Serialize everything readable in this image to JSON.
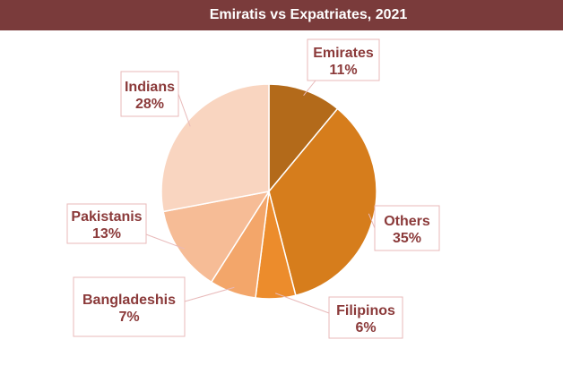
{
  "chart_data": {
    "type": "pie",
    "title": "Emiratis vs Expatriates, 2021",
    "slices": [
      {
        "name": "Emirates",
        "value": 11,
        "label": "11%",
        "color": "#b36a1a"
      },
      {
        "name": "Others",
        "value": 35,
        "label": "35%",
        "color": "#d67d1c"
      },
      {
        "name": "Filipinos",
        "value": 6,
        "label": "6%",
        "color": "#ec8c2c"
      },
      {
        "name": "Bangladeshis",
        "value": 7,
        "label": "7%",
        "color": "#f3a66a"
      },
      {
        "name": "Pakistanis",
        "value": 13,
        "label": "13%",
        "color": "#f6bc96"
      },
      {
        "name": "Indians",
        "value": 28,
        "label": "28%",
        "color": "#f9d5c0"
      }
    ]
  }
}
